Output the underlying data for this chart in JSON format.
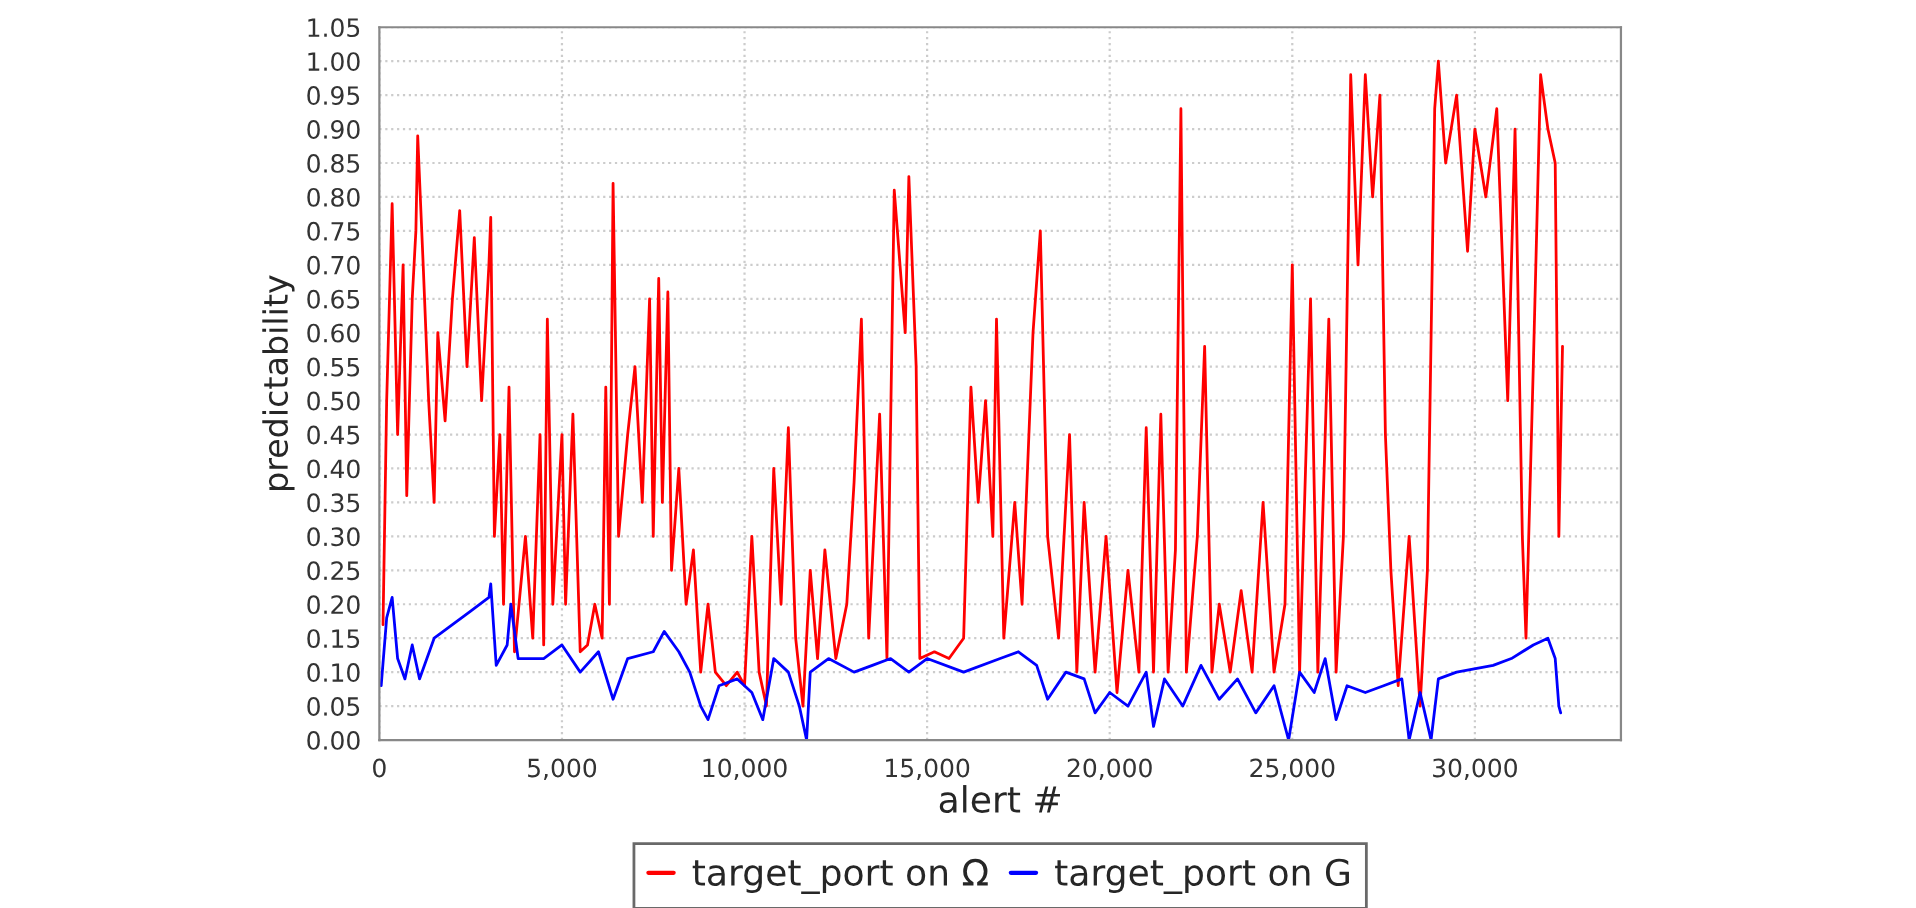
{
  "chart_data": {
    "type": "line",
    "xlabel": "alert #",
    "ylabel": "predictability",
    "xlim": [
      0,
      34000
    ],
    "ylim": [
      0,
      1.05
    ],
    "xticks": [
      {
        "value": 0,
        "label": "0"
      },
      {
        "value": 5000,
        "label": "5,000"
      },
      {
        "value": 10000,
        "label": "10,000"
      },
      {
        "value": 15000,
        "label": "15,000"
      },
      {
        "value": 20000,
        "label": "20,000"
      },
      {
        "value": 25000,
        "label": "25,000"
      },
      {
        "value": 30000,
        "label": "30,000"
      }
    ],
    "yticks": [
      {
        "value": 0,
        "label": "0.00"
      },
      {
        "value": 0.05,
        "label": "0.05"
      },
      {
        "value": 0.1,
        "label": "0.10"
      },
      {
        "value": 0.15,
        "label": "0.15"
      },
      {
        "value": 0.2,
        "label": "0.20"
      },
      {
        "value": 0.25,
        "label": "0.25"
      },
      {
        "value": 0.3,
        "label": "0.30"
      },
      {
        "value": 0.35,
        "label": "0.35"
      },
      {
        "value": 0.4,
        "label": "0.40"
      },
      {
        "value": 0.45,
        "label": "0.45"
      },
      {
        "value": 0.5,
        "label": "0.50"
      },
      {
        "value": 0.55,
        "label": "0.55"
      },
      {
        "value": 0.6,
        "label": "0.60"
      },
      {
        "value": 0.65,
        "label": "0.65"
      },
      {
        "value": 0.7,
        "label": "0.70"
      },
      {
        "value": 0.75,
        "label": "0.75"
      },
      {
        "value": 0.8,
        "label": "0.80"
      },
      {
        "value": 0.85,
        "label": "0.85"
      },
      {
        "value": 0.9,
        "label": "0.90"
      },
      {
        "value": 0.95,
        "label": "0.95"
      },
      {
        "value": 1.0,
        "label": "1.00"
      },
      {
        "value": 1.05,
        "label": "1.05"
      }
    ],
    "grid": true,
    "legend": "bottom",
    "marker": "none",
    "line_style": "solid",
    "series": [
      {
        "name": "target_port on Ω",
        "color": "#ff0000",
        "x": [
          100,
          200,
          350,
          500,
          650,
          750,
          900,
          1000,
          1050,
          1200,
          1350,
          1500,
          1600,
          1800,
          2000,
          2200,
          2400,
          2600,
          2800,
          3000,
          3050,
          3150,
          3300,
          3400,
          3550,
          3700,
          4000,
          4200,
          4400,
          4500,
          4600,
          4750,
          5000,
          5100,
          5300,
          5500,
          5700,
          5900,
          6100,
          6200,
          6300,
          6400,
          6550,
          6800,
          7000,
          7200,
          7400,
          7500,
          7650,
          7750,
          7900,
          8000,
          8200,
          8400,
          8600,
          8800,
          9000,
          9200,
          9500,
          9800,
          10000,
          10200,
          10400,
          10600,
          10800,
          11000,
          11200,
          11400,
          11600,
          11800,
          12000,
          12200,
          12500,
          12800,
          13000,
          13200,
          13400,
          13700,
          13900,
          14100,
          14400,
          14500,
          14700,
          14800,
          15200,
          15600,
          16000,
          16200,
          16400,
          16600,
          16800,
          16900,
          17100,
          17400,
          17600,
          17900,
          18100,
          18300,
          18600,
          18900,
          19100,
          19300,
          19600,
          19900,
          20200,
          20500,
          20800,
          21000,
          21200,
          21400,
          21600,
          21800,
          21950,
          22100,
          22400,
          22600,
          22800,
          23000,
          23300,
          23600,
          23900,
          24200,
          24500,
          24800,
          25000,
          25200,
          25500,
          25700,
          26000,
          26200,
          26400,
          26600,
          26800,
          27000,
          27200,
          27400,
          27550,
          27700,
          27900,
          28200,
          28500,
          28700,
          28900,
          29000,
          29200,
          29500,
          29800,
          30000,
          30300,
          30600,
          30900,
          31100,
          31300,
          31400,
          31600,
          31800,
          32000,
          32200,
          32300,
          32400
        ],
        "values": [
          0.17,
          0.5,
          0.79,
          0.45,
          0.7,
          0.36,
          0.65,
          0.75,
          0.89,
          0.7,
          0.5,
          0.35,
          0.6,
          0.47,
          0.65,
          0.78,
          0.55,
          0.74,
          0.5,
          0.7,
          0.77,
          0.3,
          0.45,
          0.2,
          0.52,
          0.13,
          0.3,
          0.15,
          0.45,
          0.14,
          0.62,
          0.2,
          0.45,
          0.2,
          0.48,
          0.13,
          0.14,
          0.2,
          0.15,
          0.52,
          0.2,
          0.82,
          0.3,
          0.45,
          0.55,
          0.35,
          0.65,
          0.3,
          0.68,
          0.35,
          0.66,
          0.25,
          0.4,
          0.2,
          0.28,
          0.1,
          0.2,
          0.1,
          0.08,
          0.1,
          0.08,
          0.3,
          0.1,
          0.05,
          0.4,
          0.2,
          0.46,
          0.15,
          0.05,
          0.25,
          0.12,
          0.28,
          0.12,
          0.2,
          0.38,
          0.62,
          0.15,
          0.48,
          0.12,
          0.81,
          0.6,
          0.83,
          0.55,
          0.12,
          0.13,
          0.12,
          0.15,
          0.52,
          0.35,
          0.5,
          0.3,
          0.62,
          0.15,
          0.35,
          0.2,
          0.6,
          0.75,
          0.3,
          0.15,
          0.45,
          0.1,
          0.35,
          0.1,
          0.3,
          0.07,
          0.25,
          0.1,
          0.46,
          0.1,
          0.48,
          0.1,
          0.28,
          0.93,
          0.1,
          0.3,
          0.58,
          0.1,
          0.2,
          0.1,
          0.22,
          0.1,
          0.35,
          0.1,
          0.2,
          0.7,
          0.1,
          0.65,
          0.1,
          0.62,
          0.1,
          0.3,
          0.98,
          0.7,
          0.98,
          0.8,
          0.95,
          0.45,
          0.25,
          0.08,
          0.3,
          0.05,
          0.25,
          0.93,
          1.0,
          0.85,
          0.95,
          0.72,
          0.9,
          0.8,
          0.93,
          0.5,
          0.9,
          0.3,
          0.15,
          0.55,
          0.98,
          0.9,
          0.85,
          0.3,
          0.58
        ]
      },
      {
        "name": "target_port on G",
        "color": "#0000ff",
        "x": [
          50,
          200,
          350,
          500,
          700,
          900,
          1100,
          1500,
          2000,
          2500,
          3000,
          3050,
          3200,
          3500,
          3600,
          3800,
          4500,
          5000,
          5500,
          6000,
          6400,
          6800,
          7500,
          7800,
          8200,
          8500,
          8800,
          9000,
          9300,
          9800,
          10200,
          10500,
          10800,
          11200,
          11500,
          11700,
          11800,
          12300,
          13000,
          13500,
          14000,
          14500,
          15000,
          16000,
          17000,
          17500,
          18000,
          18300,
          18800,
          19300,
          19600,
          20000,
          20500,
          21000,
          21200,
          21500,
          22000,
          22500,
          23000,
          23500,
          24000,
          24500,
          24900,
          25200,
          25600,
          25900,
          26200,
          26500,
          27000,
          27500,
          28000,
          28200,
          28500,
          28800,
          29000,
          29500,
          30500,
          31000,
          31300,
          31600,
          32000,
          32200,
          32300,
          32350
        ],
        "values": [
          0.08,
          0.18,
          0.21,
          0.12,
          0.09,
          0.14,
          0.09,
          0.15,
          0.17,
          0.19,
          0.21,
          0.23,
          0.11,
          0.14,
          0.2,
          0.12,
          0.12,
          0.14,
          0.1,
          0.13,
          0.06,
          0.12,
          0.13,
          0.16,
          0.13,
          0.1,
          0.05,
          0.03,
          0.08,
          0.09,
          0.07,
          0.03,
          0.12,
          0.1,
          0.05,
          0.0,
          0.1,
          0.12,
          0.1,
          0.11,
          0.12,
          0.1,
          0.12,
          0.1,
          0.12,
          0.13,
          0.11,
          0.06,
          0.1,
          0.09,
          0.04,
          0.07,
          0.05,
          0.1,
          0.02,
          0.09,
          0.05,
          0.11,
          0.06,
          0.09,
          0.04,
          0.08,
          0.0,
          0.1,
          0.07,
          0.12,
          0.03,
          0.08,
          0.07,
          0.08,
          0.09,
          0.0,
          0.07,
          0.0,
          0.09,
          0.1,
          0.11,
          0.12,
          0.13,
          0.14,
          0.15,
          0.12,
          0.05,
          0.04
        ]
      }
    ]
  }
}
